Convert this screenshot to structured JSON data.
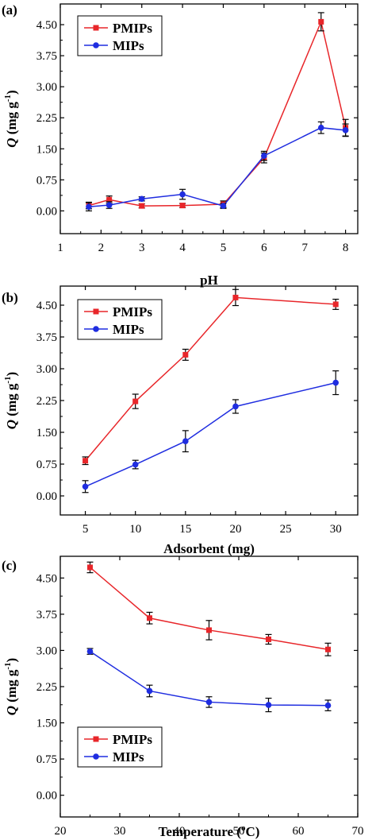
{
  "chart_data": [
    {
      "type": "line",
      "panel_label": "(a)",
      "xlabel": "pH",
      "ylabel": {
        "symbol": "Q",
        "rest": " (mg g",
        "sup": "-1",
        "close": ")"
      },
      "xlim": [
        1,
        8.3
      ],
      "ylim": [
        -0.55,
        5.0
      ],
      "xticks": [
        1,
        2,
        3,
        4,
        5,
        6,
        7,
        8
      ],
      "xtick_labels": [
        "1",
        "2",
        "3",
        "4",
        "5",
        "6",
        "7",
        "8"
      ],
      "yticks": [
        0.0,
        0.75,
        1.5,
        2.25,
        3.0,
        3.75,
        4.5
      ],
      "ytick_labels": [
        "0.00",
        "0.75",
        "1.50",
        "2.25",
        "3.00",
        "3.75",
        "4.50"
      ],
      "legend_position": "top-left",
      "series": [
        {
          "name": "PMIPs",
          "color": "#e8262a",
          "marker": "square",
          "x": [
            1.7,
            2.2,
            3.0,
            4.0,
            5.0,
            6.0,
            7.4,
            8.0
          ],
          "y": [
            0.13,
            0.27,
            0.12,
            0.13,
            0.16,
            1.28,
            4.57,
            2.01
          ],
          "err": [
            0.08,
            0.09,
            0.05,
            0.05,
            0.08,
            0.12,
            0.22,
            0.2
          ]
        },
        {
          "name": "MIPs",
          "color": "#1f2de0",
          "marker": "circle",
          "x": [
            1.7,
            2.2,
            3.0,
            4.0,
            5.0,
            6.0,
            7.4,
            8.0
          ],
          "y": [
            0.1,
            0.14,
            0.29,
            0.4,
            0.12,
            1.33,
            2.01,
            1.95
          ],
          "err": [
            0.1,
            0.08,
            0.05,
            0.12,
            0.06,
            0.11,
            0.14,
            0.15
          ]
        }
      ]
    },
    {
      "type": "line",
      "panel_label": "(b)",
      "xlabel": "Adsorbent (mg)",
      "ylabel": {
        "symbol": "Q",
        "rest": " (mg g",
        "sup": "-1",
        "close": ")"
      },
      "xlim": [
        2.5,
        32.2
      ],
      "ylim": [
        -0.45,
        4.95
      ],
      "xticks": [
        5,
        10,
        15,
        20,
        25,
        30
      ],
      "xtick_labels": [
        "5",
        "10",
        "15",
        "20",
        "25",
        "30"
      ],
      "yticks": [
        0.0,
        0.75,
        1.5,
        2.25,
        3.0,
        3.75,
        4.5
      ],
      "ytick_labels": [
        "0.00",
        "0.75",
        "1.50",
        "2.25",
        "3.00",
        "3.75",
        "4.50"
      ],
      "legend_position": "top-left",
      "series": [
        {
          "name": "PMIPs",
          "color": "#e8262a",
          "marker": "square",
          "x": [
            5,
            10,
            15,
            20,
            30
          ],
          "y": [
            0.83,
            2.23,
            3.33,
            4.68,
            4.52
          ],
          "err": [
            0.09,
            0.17,
            0.13,
            0.19,
            0.12
          ]
        },
        {
          "name": "MIPs",
          "color": "#1f2de0",
          "marker": "circle",
          "x": [
            5,
            10,
            15,
            20,
            30
          ],
          "y": [
            0.22,
            0.74,
            1.29,
            2.11,
            2.67
          ],
          "err": [
            0.14,
            0.1,
            0.25,
            0.16,
            0.28
          ]
        }
      ]
    },
    {
      "type": "line",
      "panel_label": "(c)",
      "xlabel": {
        "text": "Temperature (",
        "sup": "o",
        "close": "C)"
      },
      "ylabel": {
        "symbol": "Q",
        "rest": " (mg g",
        "sup": "-1",
        "close": ")"
      },
      "xlim": [
        20,
        70
      ],
      "ylim": [
        -0.45,
        4.95
      ],
      "xticks": [
        20,
        30,
        40,
        50,
        60,
        70
      ],
      "xtick_labels": [
        "20",
        "30",
        "40",
        "50",
        "60",
        "70"
      ],
      "yticks": [
        0.0,
        0.75,
        1.5,
        2.25,
        3.0,
        3.75,
        4.5
      ],
      "ytick_labels": [
        "0.00",
        "0.75",
        "1.50",
        "2.25",
        "3.00",
        "3.75",
        "4.50"
      ],
      "legend_position": "bottom-left",
      "series": [
        {
          "name": "PMIPs",
          "color": "#e8262a",
          "marker": "square",
          "x": [
            25,
            35,
            45,
            55,
            65
          ],
          "y": [
            4.72,
            3.67,
            3.42,
            3.23,
            3.02
          ],
          "err": [
            0.11,
            0.12,
            0.2,
            0.1,
            0.13
          ]
        },
        {
          "name": "MIPs",
          "color": "#1f2de0",
          "marker": "circle",
          "x": [
            25,
            35,
            45,
            55,
            65
          ],
          "y": [
            2.98,
            2.16,
            1.93,
            1.87,
            1.86
          ],
          "err": [
            0.06,
            0.12,
            0.11,
            0.14,
            0.11
          ]
        }
      ]
    }
  ]
}
